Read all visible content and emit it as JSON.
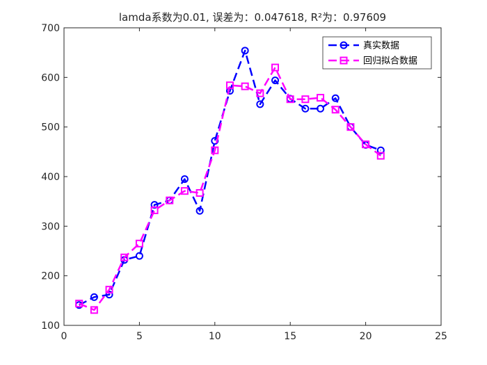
{
  "chart_data": {
    "type": "line",
    "title": "lamda系数为0.01, 误差为：0.047618, R²为：0.97609",
    "xlabel": "",
    "ylabel": "",
    "xlim": [
      0,
      25
    ],
    "ylim": [
      100,
      700
    ],
    "xticks": [
      0,
      5,
      10,
      15,
      20,
      25
    ],
    "yticks": [
      100,
      200,
      300,
      400,
      500,
      600,
      700
    ],
    "grid": false,
    "legend_position": "top-right",
    "x": [
      1,
      2,
      3,
      4,
      5,
      6,
      7,
      8,
      9,
      10,
      11,
      12,
      13,
      14,
      15,
      16,
      17,
      18,
      19,
      20,
      21
    ],
    "series": [
      {
        "name": "真实数据",
        "color": "#0000ff",
        "marker": "circle",
        "line": "dashed",
        "values": [
          141,
          157,
          162,
          232,
          240,
          343,
          352,
          395,
          331,
          472,
          573,
          654,
          546,
          594,
          557,
          537,
          537,
          558,
          500,
          464,
          453
        ]
      },
      {
        "name": "回归拟合数据",
        "color": "#ff00ff",
        "marker": "square",
        "line": "dashed",
        "values": [
          144,
          131,
          172,
          237,
          265,
          332,
          352,
          371,
          367,
          453,
          584,
          582,
          568,
          620,
          556,
          556,
          559,
          535,
          500,
          465,
          442
        ]
      }
    ]
  }
}
